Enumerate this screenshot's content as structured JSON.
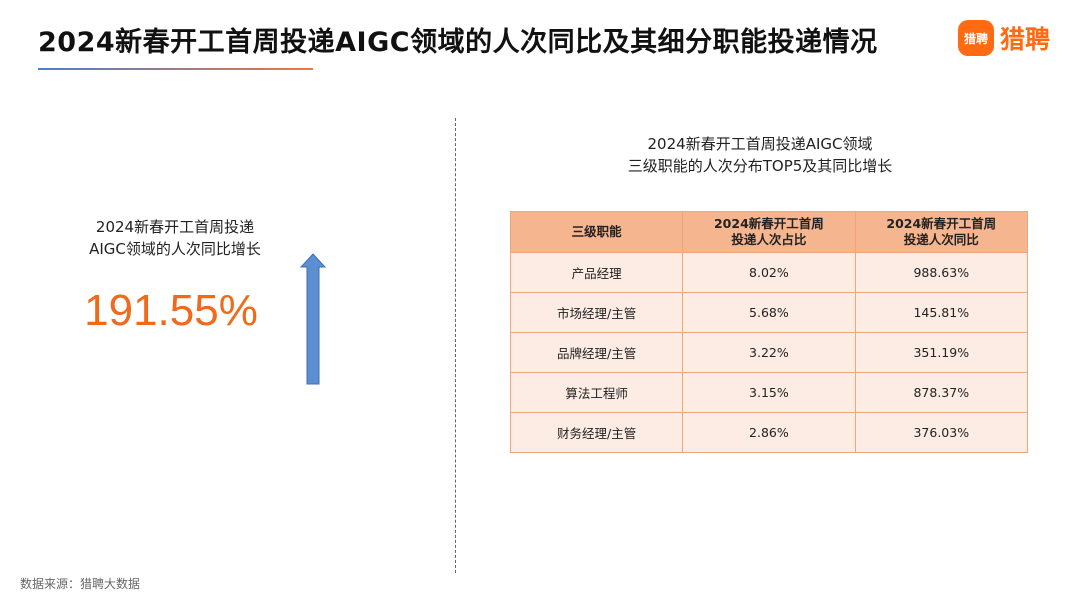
{
  "header": {
    "title": "2024新春开工首周投递AIGC领域的人次同比及其细分职能投递情况",
    "logo_badge": "猎聘",
    "logo_text": "猎聘"
  },
  "left_panel": {
    "caption_line1": "2024新春开工首周投递",
    "caption_line2": "AIGC领域的人次同比增长",
    "value": "191.55%",
    "arrow_icon": "up-arrow-icon"
  },
  "right_panel": {
    "caption_line1": "2024新春开工首周投递AIGC领域",
    "caption_line2": "三级职能的人次分布TOP5及其同比增长",
    "table": {
      "headers": [
        {
          "line1": "三级职能",
          "line2": ""
        },
        {
          "line1": "2024新春开工首周",
          "line2": "投递人次占比"
        },
        {
          "line1": "2024新春开工首周",
          "line2": "投递人次同比"
        }
      ],
      "rows": [
        [
          "产品经理",
          "8.02%",
          "988.63%"
        ],
        [
          "市场经理/主管",
          "5.68%",
          "145.81%"
        ],
        [
          "品牌经理/主管",
          "3.22%",
          "351.19%"
        ],
        [
          "算法工程师",
          "3.15%",
          "878.37%"
        ],
        [
          "财务经理/主管",
          "2.86%",
          "376.03%"
        ]
      ]
    }
  },
  "footer": {
    "source": "数据来源：猎聘大数据"
  },
  "colors": {
    "accent_orange": "#f06a1a",
    "brand": "#ff6a13",
    "header_fill": "#f5b58f",
    "cell_fill": "#fdece4",
    "arrow_blue": "#5b8fd1"
  }
}
